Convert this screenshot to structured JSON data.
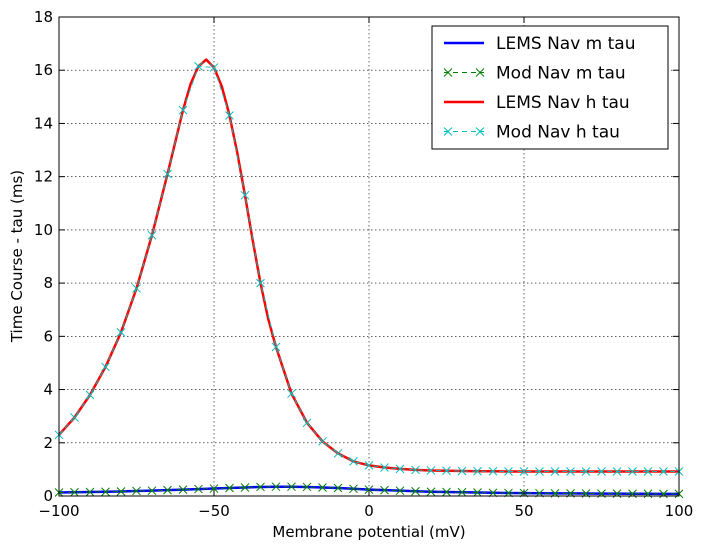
{
  "chart_data": {
    "type": "line",
    "title": "",
    "xlabel": "Membrane potential (mV)",
    "ylabel": "Time Course - tau (ms)",
    "xlim": [
      -100,
      100
    ],
    "ylim": [
      0,
      18
    ],
    "xticks": [
      -100,
      -50,
      0,
      50,
      100
    ],
    "yticks": [
      0,
      2,
      4,
      6,
      8,
      10,
      12,
      14,
      16,
      18
    ],
    "xtick_labels": [
      "−100",
      "−50",
      "0",
      "50",
      "100"
    ],
    "ytick_labels": [
      "0",
      "2",
      "4",
      "6",
      "8",
      "10",
      "12",
      "14",
      "16",
      "18"
    ],
    "grid": true,
    "legend_position": "top-right",
    "series": [
      {
        "name": "LEMS Nav m tau",
        "style": "line",
        "color": "#0000ff",
        "x": [
          -100,
          -95,
          -90,
          -85,
          -80,
          -75,
          -70,
          -65,
          -60,
          -55,
          -50,
          -45,
          -40,
          -35,
          -30,
          -25,
          -20,
          -15,
          -10,
          -5,
          0,
          5,
          10,
          15,
          20,
          25,
          30,
          35,
          40,
          45,
          50,
          55,
          60,
          65,
          70,
          75,
          80,
          85,
          90,
          95,
          100
        ],
        "y": [
          0.13,
          0.14,
          0.15,
          0.16,
          0.17,
          0.19,
          0.2,
          0.22,
          0.24,
          0.26,
          0.28,
          0.3,
          0.32,
          0.34,
          0.35,
          0.35,
          0.34,
          0.32,
          0.3,
          0.27,
          0.24,
          0.22,
          0.2,
          0.18,
          0.16,
          0.15,
          0.14,
          0.13,
          0.12,
          0.115,
          0.11,
          0.105,
          0.1,
          0.1,
          0.095,
          0.09,
          0.09,
          0.085,
          0.085,
          0.08,
          0.08
        ]
      },
      {
        "name": "Mod Nav m tau",
        "style": "markers-x",
        "color": "#008000",
        "x": [
          -100,
          -95,
          -90,
          -85,
          -80,
          -75,
          -70,
          -65,
          -60,
          -55,
          -50,
          -45,
          -40,
          -35,
          -30,
          -25,
          -20,
          -15,
          -10,
          -5,
          0,
          5,
          10,
          15,
          20,
          25,
          30,
          35,
          40,
          45,
          50,
          55,
          60,
          65,
          70,
          75,
          80,
          85,
          90,
          95,
          100
        ],
        "y": [
          0.13,
          0.14,
          0.15,
          0.16,
          0.17,
          0.19,
          0.2,
          0.22,
          0.24,
          0.26,
          0.28,
          0.3,
          0.32,
          0.34,
          0.35,
          0.35,
          0.34,
          0.32,
          0.3,
          0.27,
          0.24,
          0.22,
          0.2,
          0.18,
          0.16,
          0.15,
          0.14,
          0.13,
          0.12,
          0.115,
          0.11,
          0.105,
          0.1,
          0.1,
          0.095,
          0.09,
          0.09,
          0.085,
          0.085,
          0.08,
          0.08
        ]
      },
      {
        "name": "LEMS Nav h tau",
        "style": "line",
        "color": "#ff0000",
        "x": [
          -100,
          -95,
          -90,
          -85,
          -80,
          -75,
          -70,
          -65,
          -60,
          -57.5,
          -55,
          -52.5,
          -50,
          -47.5,
          -45,
          -42.5,
          -40,
          -37.5,
          -35,
          -32.5,
          -30,
          -25,
          -20,
          -15,
          -10,
          -5,
          0,
          5,
          10,
          15,
          20,
          25,
          30,
          35,
          40,
          45,
          50,
          55,
          60,
          65,
          70,
          75,
          80,
          85,
          90,
          95,
          100
        ],
        "y": [
          2.3,
          2.95,
          3.8,
          4.85,
          6.15,
          7.8,
          9.8,
          12.1,
          14.5,
          15.5,
          16.15,
          16.4,
          16.1,
          15.4,
          14.3,
          12.9,
          11.3,
          9.6,
          8.0,
          6.65,
          5.6,
          3.85,
          2.75,
          2.05,
          1.6,
          1.3,
          1.15,
          1.07,
          1.02,
          0.98,
          0.96,
          0.95,
          0.94,
          0.93,
          0.93,
          0.92,
          0.92,
          0.92,
          0.92,
          0.92,
          0.92,
          0.92,
          0.92,
          0.92,
          0.92,
          0.92,
          0.92
        ]
      },
      {
        "name": "Mod Nav h tau",
        "style": "markers-x",
        "color": "#00bfbf",
        "x": [
          -100,
          -95,
          -90,
          -85,
          -80,
          -75,
          -70,
          -65,
          -60,
          -55,
          -50,
          -45,
          -40,
          -35,
          -30,
          -25,
          -20,
          -15,
          -10,
          -5,
          0,
          5,
          10,
          15,
          20,
          25,
          30,
          35,
          40,
          45,
          50,
          55,
          60,
          65,
          70,
          75,
          80,
          85,
          90,
          95,
          100
        ],
        "y": [
          2.3,
          2.95,
          3.8,
          4.85,
          6.15,
          7.8,
          9.8,
          12.1,
          14.5,
          16.15,
          16.1,
          14.3,
          11.3,
          8.0,
          5.6,
          3.85,
          2.75,
          2.05,
          1.6,
          1.3,
          1.15,
          1.07,
          1.02,
          0.98,
          0.96,
          0.95,
          0.94,
          0.93,
          0.93,
          0.92,
          0.92,
          0.92,
          0.92,
          0.92,
          0.92,
          0.92,
          0.92,
          0.92,
          0.92,
          0.92,
          0.92
        ]
      }
    ]
  }
}
